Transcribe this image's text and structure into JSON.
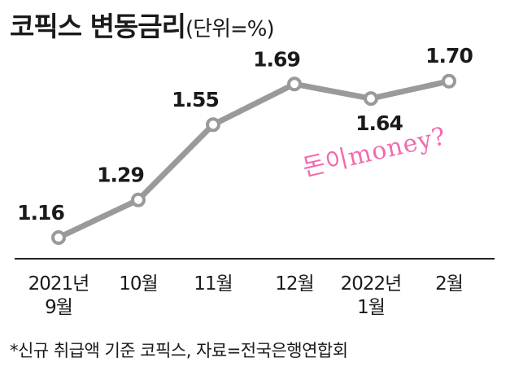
{
  "title": "코픽스 변동금리",
  "unit": "(단위=%)",
  "footnote": "*신규 취급액 기준 코픽스, 자료=전국은행연합회",
  "watermark": "돈이money?",
  "colors": {
    "line": "#9a9a9a",
    "text": "#1a1a1a",
    "watermark": "#f06bb0"
  },
  "chart_data": {
    "type": "line",
    "title": "코픽스 변동금리 (단위=%)",
    "xlabel": "",
    "ylabel": "",
    "grid": false,
    "categories": [
      [
        "2021년",
        "9월"
      ],
      [
        "10월"
      ],
      [
        "11월"
      ],
      [
        "12월"
      ],
      [
        "2022년",
        "1월"
      ],
      [
        "2월"
      ]
    ],
    "values": [
      1.16,
      1.29,
      1.55,
      1.69,
      1.64,
      1.7
    ],
    "value_labels": [
      "1.16",
      "1.29",
      "1.55",
      "1.69",
      "1.64",
      "1.70"
    ],
    "ylim": [
      1.0,
      1.8
    ]
  }
}
